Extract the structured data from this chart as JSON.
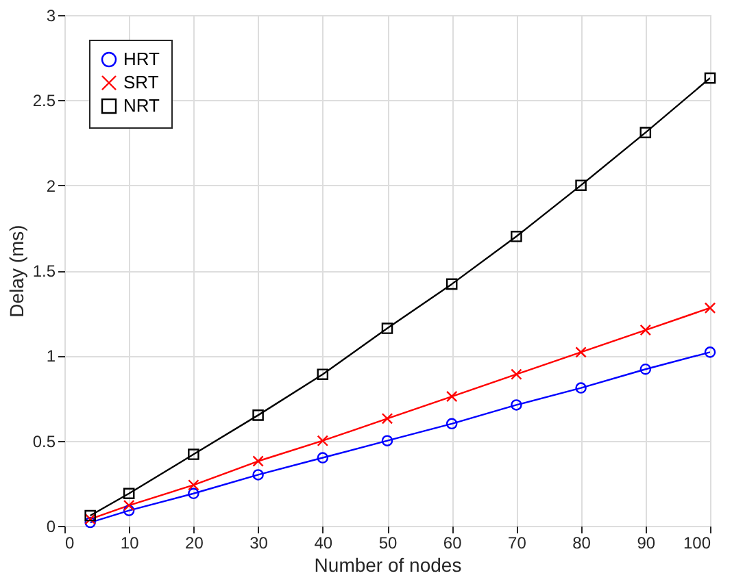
{
  "chart_data": {
    "type": "line",
    "xlabel": "Number of nodes",
    "ylabel": "Delay (ms)",
    "x": [
      4,
      10,
      20,
      30,
      40,
      50,
      60,
      70,
      80,
      90,
      100
    ],
    "series": [
      {
        "name": "HRT",
        "color": "#0000ff",
        "marker": "circle",
        "values": [
          0.02,
          0.09,
          0.19,
          0.3,
          0.4,
          0.5,
          0.6,
          0.71,
          0.81,
          0.92,
          1.02
        ]
      },
      {
        "name": "SRT",
        "color": "#ff0000",
        "marker": "cross",
        "values": [
          0.04,
          0.12,
          0.24,
          0.38,
          0.5,
          0.63,
          0.76,
          0.89,
          1.02,
          1.15,
          1.28
        ]
      },
      {
        "name": "NRT",
        "color": "#000000",
        "marker": "square",
        "values": [
          0.06,
          0.19,
          0.42,
          0.65,
          0.89,
          1.16,
          1.42,
          1.7,
          2.0,
          2.31,
          2.63
        ]
      }
    ],
    "xlim": [
      0,
      100
    ],
    "xticks": [
      0,
      10,
      20,
      30,
      40,
      50,
      60,
      70,
      80,
      90,
      100
    ],
    "ylim": [
      0,
      3
    ],
    "yticks": [
      0,
      0.5,
      1,
      1.5,
      2,
      2.5,
      3
    ],
    "grid": true,
    "legend": "top left",
    "line_style": "solid"
  }
}
